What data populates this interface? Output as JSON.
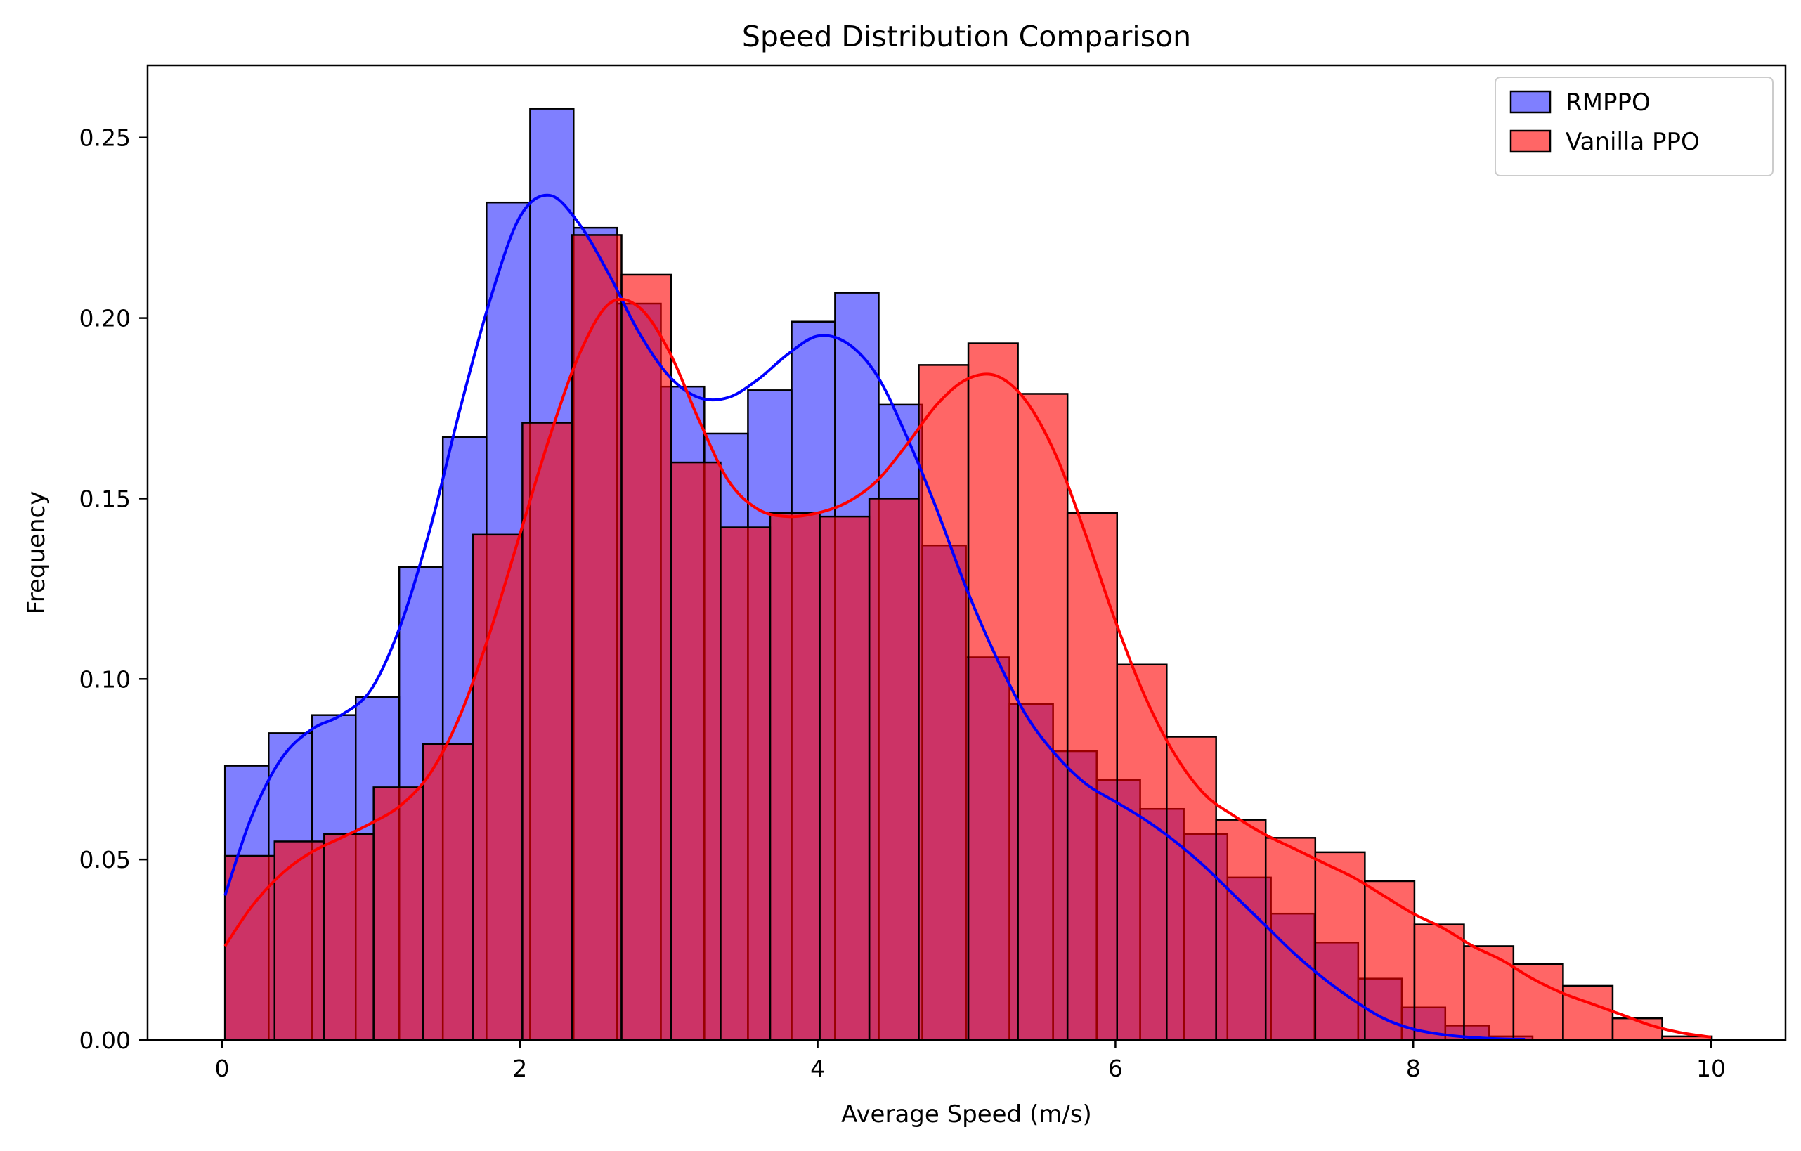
{
  "chart_data": {
    "type": "histogram",
    "title": "Speed Distribution Comparison",
    "xlabel": "Average Speed (m/s)",
    "ylabel": "Frequency",
    "xlim": [
      -0.5,
      10.5
    ],
    "ylim": [
      0,
      0.27
    ],
    "xticks": [
      0,
      2,
      4,
      6,
      8,
      10
    ],
    "xtick_labels": [
      "0",
      "2",
      "4",
      "6",
      "8",
      "10"
    ],
    "yticks": [
      0,
      0.05,
      0.1,
      0.15,
      0.2,
      0.25
    ],
    "ytick_labels": [
      "0.00",
      "0.05",
      "0.10",
      "0.15",
      "0.20",
      "0.25"
    ],
    "grid": false,
    "legend_position": "top-right",
    "series": [
      {
        "name": "RMPPO",
        "color": "#0000ff",
        "bar_alpha": 0.5,
        "bin_edges": [
          0.02,
          0.313,
          0.605,
          0.898,
          1.19,
          1.483,
          1.776,
          2.069,
          2.361,
          2.654,
          2.947,
          3.239,
          3.532,
          3.825,
          4.117,
          4.41,
          4.703,
          4.996,
          5.288,
          5.581,
          5.874,
          6.166,
          6.459,
          6.752,
          7.044,
          7.337,
          7.63,
          7.923,
          8.215,
          8.508,
          8.801
        ],
        "values": [
          0.076,
          0.085,
          0.09,
          0.095,
          0.131,
          0.167,
          0.232,
          0.258,
          0.225,
          0.204,
          0.181,
          0.168,
          0.18,
          0.199,
          0.207,
          0.176,
          0.137,
          0.106,
          0.093,
          0.08,
          0.072,
          0.064,
          0.057,
          0.045,
          0.035,
          0.027,
          0.017,
          0.009,
          0.004,
          0.001
        ],
        "kde": [
          [
            0.02,
            0.04
          ],
          [
            0.2,
            0.062
          ],
          [
            0.4,
            0.078
          ],
          [
            0.6,
            0.086
          ],
          [
            0.8,
            0.09
          ],
          [
            1.0,
            0.097
          ],
          [
            1.2,
            0.115
          ],
          [
            1.4,
            0.142
          ],
          [
            1.6,
            0.175
          ],
          [
            1.8,
            0.205
          ],
          [
            2.0,
            0.228
          ],
          [
            2.2,
            0.234
          ],
          [
            2.4,
            0.226
          ],
          [
            2.6,
            0.212
          ],
          [
            2.8,
            0.196
          ],
          [
            3.0,
            0.184
          ],
          [
            3.2,
            0.178
          ],
          [
            3.4,
            0.178
          ],
          [
            3.6,
            0.183
          ],
          [
            3.8,
            0.19
          ],
          [
            4.0,
            0.195
          ],
          [
            4.2,
            0.193
          ],
          [
            4.4,
            0.184
          ],
          [
            4.6,
            0.167
          ],
          [
            4.8,
            0.147
          ],
          [
            5.0,
            0.125
          ],
          [
            5.2,
            0.106
          ],
          [
            5.4,
            0.09
          ],
          [
            5.6,
            0.079
          ],
          [
            5.8,
            0.071
          ],
          [
            6.0,
            0.066
          ],
          [
            6.2,
            0.061
          ],
          [
            6.4,
            0.055
          ],
          [
            6.6,
            0.048
          ],
          [
            6.8,
            0.04
          ],
          [
            7.0,
            0.032
          ],
          [
            7.2,
            0.024
          ],
          [
            7.4,
            0.017
          ],
          [
            7.6,
            0.011
          ],
          [
            7.8,
            0.006
          ],
          [
            8.0,
            0.003
          ],
          [
            8.2,
            0.0015
          ],
          [
            8.4,
            0.0007
          ],
          [
            8.6,
            0.0003
          ],
          [
            8.75,
            0.0002
          ]
        ]
      },
      {
        "name": "Vanilla PPO",
        "color": "#ff0000",
        "bar_alpha": 0.6,
        "bin_edges": [
          0.02,
          0.353,
          0.686,
          1.018,
          1.351,
          1.684,
          2.017,
          2.35,
          2.683,
          3.015,
          3.348,
          3.681,
          4.014,
          4.347,
          4.679,
          5.012,
          5.345,
          5.678,
          6.011,
          6.344,
          6.676,
          7.009,
          7.342,
          7.675,
          8.008,
          8.341,
          8.673,
          9.006,
          9.339,
          9.672,
          10.005
        ],
        "values": [
          0.051,
          0.055,
          0.057,
          0.07,
          0.082,
          0.14,
          0.171,
          0.223,
          0.212,
          0.16,
          0.142,
          0.146,
          0.145,
          0.15,
          0.187,
          0.193,
          0.179,
          0.146,
          0.104,
          0.084,
          0.061,
          0.056,
          0.052,
          0.044,
          0.032,
          0.026,
          0.021,
          0.015,
          0.006,
          0.001
        ],
        "kde": [
          [
            0.02,
            0.026
          ],
          [
            0.2,
            0.037
          ],
          [
            0.4,
            0.046
          ],
          [
            0.6,
            0.052
          ],
          [
            0.8,
            0.056
          ],
          [
            1.0,
            0.06
          ],
          [
            1.2,
            0.065
          ],
          [
            1.4,
            0.074
          ],
          [
            1.6,
            0.09
          ],
          [
            1.8,
            0.113
          ],
          [
            2.0,
            0.14
          ],
          [
            2.2,
            0.167
          ],
          [
            2.4,
            0.19
          ],
          [
            2.6,
            0.204
          ],
          [
            2.8,
            0.203
          ],
          [
            3.0,
            0.191
          ],
          [
            3.2,
            0.172
          ],
          [
            3.4,
            0.155
          ],
          [
            3.6,
            0.147
          ],
          [
            3.8,
            0.145
          ],
          [
            4.0,
            0.146
          ],
          [
            4.2,
            0.149
          ],
          [
            4.4,
            0.155
          ],
          [
            4.6,
            0.165
          ],
          [
            4.8,
            0.176
          ],
          [
            5.0,
            0.183
          ],
          [
            5.2,
            0.184
          ],
          [
            5.4,
            0.177
          ],
          [
            5.6,
            0.162
          ],
          [
            5.8,
            0.14
          ],
          [
            6.0,
            0.116
          ],
          [
            6.2,
            0.095
          ],
          [
            6.4,
            0.079
          ],
          [
            6.6,
            0.068
          ],
          [
            6.8,
            0.062
          ],
          [
            7.0,
            0.057
          ],
          [
            7.2,
            0.053
          ],
          [
            7.4,
            0.049
          ],
          [
            7.6,
            0.045
          ],
          [
            7.8,
            0.04
          ],
          [
            8.0,
            0.035
          ],
          [
            8.2,
            0.031
          ],
          [
            8.4,
            0.026
          ],
          [
            8.6,
            0.022
          ],
          [
            8.8,
            0.017
          ],
          [
            9.0,
            0.013
          ],
          [
            9.2,
            0.01
          ],
          [
            9.4,
            0.007
          ],
          [
            9.6,
            0.004
          ],
          [
            9.8,
            0.002
          ],
          [
            10.0,
            0.0008
          ]
        ]
      }
    ]
  }
}
